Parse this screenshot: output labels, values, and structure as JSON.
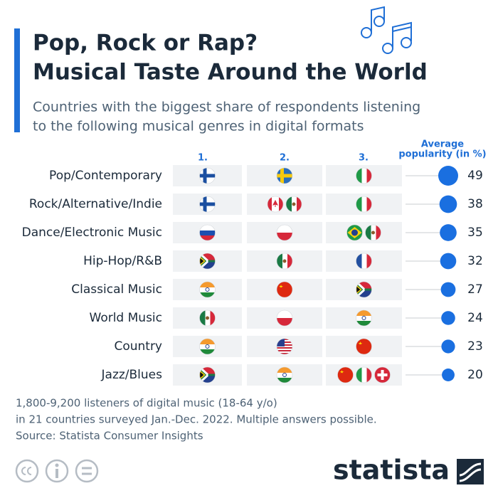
{
  "chart_data": {
    "type": "bubble",
    "title": [
      "Pop, Rock or Rap?",
      "Musical Taste Around the World"
    ],
    "subtitle": [
      "Countries with the biggest share of respondents listening",
      "to the following musical genres in digital formats"
    ],
    "columns": [
      "1.",
      "2.",
      "3."
    ],
    "value_heading": [
      "Average",
      "popularity (in %)"
    ],
    "categories": [
      "Pop/Contemporary",
      "Rock/Alternative/Indie",
      "Dance/Electronic Music",
      "Hip-Hop/R&B",
      "Classical Music",
      "World Music",
      "Country",
      "Jazz/Blues"
    ],
    "values": [
      49,
      38,
      35,
      32,
      27,
      24,
      23,
      20
    ],
    "color": "#1a6fe0",
    "notes": [
      "1,800-9,200 listeners of digital music (18-64 y/o)",
      "in 21 countries surveyed Jan.-Dec. 2022. Multiple answers possible.",
      "Source: Statista Consumer Insights"
    ],
    "logo": "statista"
  }
}
